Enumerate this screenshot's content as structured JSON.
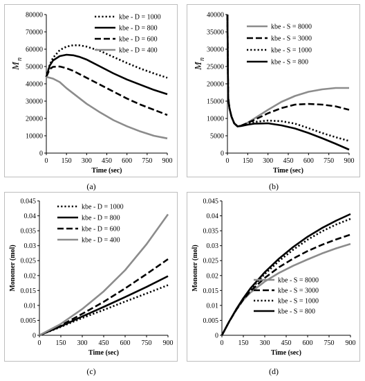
{
  "chart_data": [
    {
      "id": "a",
      "type": "line",
      "caption": "(a)",
      "xlabel": "Time (sec)",
      "ylabel": "M",
      "ylabel_sub": "n",
      "xlim": [
        0,
        900
      ],
      "ylim": [
        0,
        80000
      ],
      "x_ticks": [
        "0",
        "150",
        "300",
        "450",
        "600",
        "750",
        "900"
      ],
      "y_ticks": [
        "0",
        "10000",
        "20000",
        "30000",
        "40000",
        "50000",
        "60000",
        "70000",
        "80000"
      ],
      "legend_position": "top-right",
      "x": [
        0,
        25,
        50,
        100,
        150,
        200,
        250,
        300,
        400,
        500,
        600,
        700,
        800,
        900
      ],
      "series": [
        {
          "name": "kbe - D = 1000",
          "color": "#000000",
          "style": "dotted",
          "values": [
            44000,
            51000,
            55000,
            59500,
            61500,
            62300,
            62200,
            61500,
            59000,
            55500,
            52000,
            48800,
            46000,
            43500
          ]
        },
        {
          "name": "kbe - D = 800",
          "color": "#000000",
          "style": "solid",
          "values": [
            44000,
            50500,
            53500,
            56000,
            56800,
            56500,
            55500,
            54000,
            50000,
            46000,
            42500,
            39500,
            36500,
            34000
          ]
        },
        {
          "name": "kbe - D = 600",
          "color": "#000000",
          "style": "dashed",
          "values": [
            44000,
            48500,
            49800,
            50000,
            49000,
            47500,
            45500,
            43500,
            39500,
            35500,
            31500,
            28000,
            25000,
            22000
          ]
        },
        {
          "name": "kbe - D = 400",
          "color": "#8c8c8c",
          "style": "solid",
          "values": [
            44000,
            43500,
            43000,
            41000,
            37500,
            34500,
            31500,
            28500,
            23500,
            19000,
            15500,
            12500,
            10000,
            8500
          ]
        }
      ]
    },
    {
      "id": "b",
      "type": "line",
      "caption": "(b)",
      "xlabel": "Time (sec)",
      "ylabel": "M",
      "ylabel_sub": "n",
      "xlim": [
        0,
        900
      ],
      "ylim": [
        0,
        40000
      ],
      "x_ticks": [
        "0",
        "150",
        "300",
        "450",
        "600",
        "750",
        "900"
      ],
      "y_ticks": [
        "0",
        "5000",
        "10000",
        "15000",
        "20000",
        "25000",
        "30000",
        "35000",
        "40000"
      ],
      "legend_position": "top-right",
      "x": [
        0,
        5,
        15,
        30,
        50,
        75,
        100,
        150,
        200,
        300,
        400,
        500,
        600,
        700,
        800,
        900
      ],
      "series": [
        {
          "name": "kbe - S = 8000",
          "color": "#8c8c8c",
          "style": "solid",
          "values": [
            40000,
            16000,
            13000,
            10500,
            8600,
            7700,
            7900,
            8800,
            10000,
            12500,
            14800,
            16500,
            17700,
            18400,
            18800,
            18800
          ]
        },
        {
          "name": "kbe - S = 3000",
          "color": "#000000",
          "style": "dashed",
          "values": [
            40000,
            16000,
            13000,
            10500,
            8600,
            7700,
            7900,
            8700,
            9600,
            11500,
            13000,
            14000,
            14200,
            14000,
            13500,
            12500
          ]
        },
        {
          "name": "kbe - S = 1000",
          "color": "#000000",
          "style": "dotted",
          "values": [
            40000,
            16000,
            13000,
            10500,
            8600,
            7700,
            7900,
            8500,
            9000,
            9400,
            9200,
            8500,
            7200,
            5800,
            4600,
            3500
          ]
        },
        {
          "name": "kbe - S = 800",
          "color": "#000000",
          "style": "solid",
          "values": [
            40000,
            16000,
            13000,
            10500,
            8600,
            7700,
            7800,
            8200,
            8500,
            8600,
            8000,
            7100,
            5800,
            4300,
            2700,
            1000
          ]
        }
      ]
    },
    {
      "id": "c",
      "type": "line",
      "caption": "(c)",
      "xlabel": "Time (sec)",
      "ylabel": "Monomer (mol)",
      "xlim": [
        0,
        900
      ],
      "ylim": [
        0,
        0.045
      ],
      "x_ticks": [
        "0",
        "150",
        "300",
        "450",
        "600",
        "750",
        "900"
      ],
      "y_ticks": [
        "0",
        "0.005",
        "0.01",
        "0.015",
        "0.02",
        "0.025",
        "0.03",
        "0.035",
        "0.04",
        "0.045"
      ],
      "legend_position": "top-left",
      "x": [
        0,
        150,
        300,
        450,
        600,
        750,
        900
      ],
      "series": [
        {
          "name": "kbe - D = 1000",
          "color": "#000000",
          "style": "dotted",
          "values": [
            0,
            0.0028,
            0.0058,
            0.0085,
            0.0113,
            0.014,
            0.0168
          ]
        },
        {
          "name": "kbe - D = 800",
          "color": "#000000",
          "style": "solid",
          "values": [
            0,
            0.003,
            0.0063,
            0.0095,
            0.0128,
            0.0162,
            0.0198
          ]
        },
        {
          "name": "kbe - D = 600",
          "color": "#000000",
          "style": "dashed",
          "values": [
            0,
            0.0033,
            0.0072,
            0.0112,
            0.0157,
            0.0205,
            0.0255
          ]
        },
        {
          "name": "kbe - D = 400",
          "color": "#8c8c8c",
          "style": "solid",
          "values": [
            0,
            0.0038,
            0.0088,
            0.0147,
            0.0218,
            0.0305,
            0.0405
          ]
        }
      ]
    },
    {
      "id": "d",
      "type": "line",
      "caption": "(d)",
      "xlabel": "Time (sec)",
      "ylabel": "Monomer (mol)",
      "xlim": [
        0,
        900
      ],
      "ylim": [
        0,
        0.045
      ],
      "x_ticks": [
        "0",
        "150",
        "300",
        "450",
        "600",
        "750",
        "900"
      ],
      "y_ticks": [
        "0",
        "0.005",
        "0.01",
        "0.015",
        "0.02",
        "0.025",
        "0.03",
        "0.035",
        "0.04",
        "0.045"
      ],
      "legend_position": "bottom-right",
      "x": [
        0,
        50,
        100,
        150,
        200,
        300,
        400,
        500,
        600,
        700,
        800,
        900
      ],
      "series": [
        {
          "name": "kbe - S = 8000",
          "color": "#8c8c8c",
          "style": "solid",
          "values": [
            0,
            0.0045,
            0.0085,
            0.0118,
            0.0143,
            0.018,
            0.0209,
            0.0233,
            0.0254,
            0.0274,
            0.0291,
            0.0306
          ]
        },
        {
          "name": "kbe - S = 3000",
          "color": "#000000",
          "style": "dashed",
          "values": [
            0,
            0.0045,
            0.0085,
            0.012,
            0.0148,
            0.0192,
            0.0228,
            0.0257,
            0.0282,
            0.0303,
            0.0321,
            0.0337
          ]
        },
        {
          "name": "kbe - S = 1000",
          "color": "#000000",
          "style": "dotted",
          "values": [
            0,
            0.0045,
            0.0086,
            0.0122,
            0.0153,
            0.0205,
            0.0249,
            0.0287,
            0.032,
            0.0348,
            0.0371,
            0.039
          ]
        },
        {
          "name": "kbe - S = 800",
          "color": "#000000",
          "style": "solid",
          "values": [
            0,
            0.0045,
            0.0087,
            0.0124,
            0.0157,
            0.0211,
            0.0257,
            0.0296,
            0.033,
            0.0359,
            0.0384,
            0.0406
          ]
        }
      ]
    }
  ]
}
